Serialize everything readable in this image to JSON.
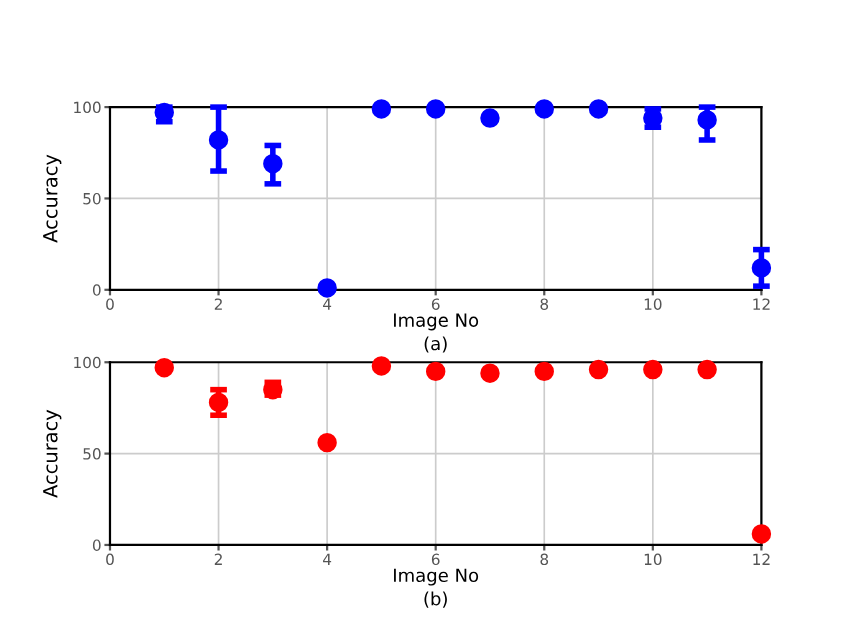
{
  "chart_data": [
    {
      "type": "scatter",
      "xlabel": "Image No",
      "ylabel": "Accuracy",
      "annotations": [
        "(a)"
      ],
      "x": [
        1,
        2,
        3,
        4,
        5,
        6,
        7,
        8,
        9,
        10,
        11,
        12
      ],
      "xlim": [
        0,
        12
      ],
      "xticks": [
        0,
        2,
        4,
        6,
        8,
        10,
        12
      ],
      "ylim": [
        0,
        100
      ],
      "yticks": [
        0,
        50,
        100
      ],
      "grid": true,
      "marker": "circle",
      "series": [
        {
          "color": "#0000ff",
          "values": [
            97,
            82,
            69,
            1,
            99,
            99,
            94,
            99,
            99,
            94,
            93,
            12
          ],
          "errors": [
            [
              92,
              100
            ],
            [
              65,
              100
            ],
            [
              58,
              79
            ],
            null,
            null,
            null,
            null,
            null,
            null,
            [
              89,
              99
            ],
            [
              82,
              100
            ],
            [
              2,
              22
            ]
          ]
        }
      ]
    },
    {
      "type": "scatter",
      "xlabel": "Image No",
      "ylabel": "Accuracy",
      "annotations": [
        "(b)"
      ],
      "x": [
        1,
        2,
        3,
        4,
        5,
        6,
        7,
        8,
        9,
        10,
        11,
        12
      ],
      "xlim": [
        0,
        12
      ],
      "xticks": [
        0,
        2,
        4,
        6,
        8,
        10,
        12
      ],
      "ylim": [
        0,
        100
      ],
      "yticks": [
        0,
        50,
        100
      ],
      "grid": true,
      "marker": "circle",
      "series": [
        {
          "color": "#ff0000",
          "values": [
            97,
            78,
            85,
            56,
            98,
            95,
            94,
            95,
            96,
            96,
            96,
            6
          ],
          "errors": [
            null,
            [
              71,
              85
            ],
            [
              82,
              89
            ],
            null,
            null,
            null,
            null,
            null,
            null,
            null,
            null,
            null
          ]
        }
      ]
    }
  ]
}
